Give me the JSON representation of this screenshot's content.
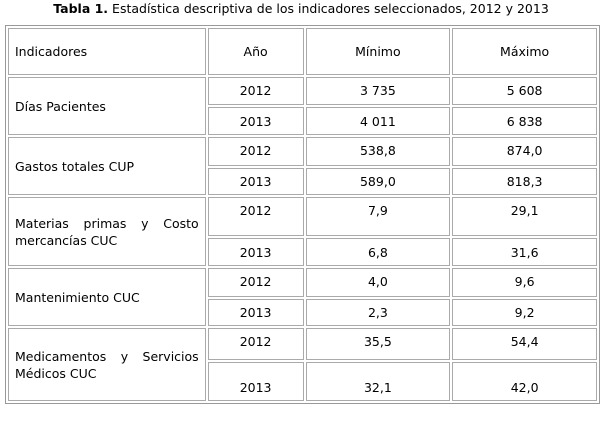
{
  "title": {
    "label": "Tabla 1.",
    "text": "Estadística descriptiva de los indicadores seleccionados, 2012 y 2013"
  },
  "table": {
    "header": [
      "Indicadores",
      "Año",
      "Mínimo",
      "Máximo"
    ],
    "groups": [
      {
        "indicator": "Días Pacientes",
        "rows": [
          [
            "2012",
            "3 735",
            "5 608"
          ],
          [
            "2013",
            "4 011",
            "6 838"
          ]
        ]
      },
      {
        "indicator": "Gastos totales CUP",
        "rows": [
          [
            "2012",
            "538,8",
            "874,0"
          ],
          [
            "2013",
            "589,0",
            "818,3"
          ]
        ]
      },
      {
        "indicator": "Materias primas y Costo mercancías CUC",
        "rows": [
          [
            "2012",
            "7,9",
            "29,1"
          ],
          [
            "2013",
            "6,8",
            "31,6"
          ]
        ]
      },
      {
        "indicator": "Mantenimiento CUC",
        "rows": [
          [
            "2012",
            "4,0",
            "9,6"
          ],
          [
            "2013",
            "2,3",
            "9,2"
          ]
        ]
      },
      {
        "indicator": "Medicamentos y Servicios Médicos CUC",
        "rows": [
          [
            "2012",
            "35,5",
            "54,4"
          ],
          [
            "2013",
            "32,1",
            "42,0"
          ]
        ]
      }
    ]
  }
}
